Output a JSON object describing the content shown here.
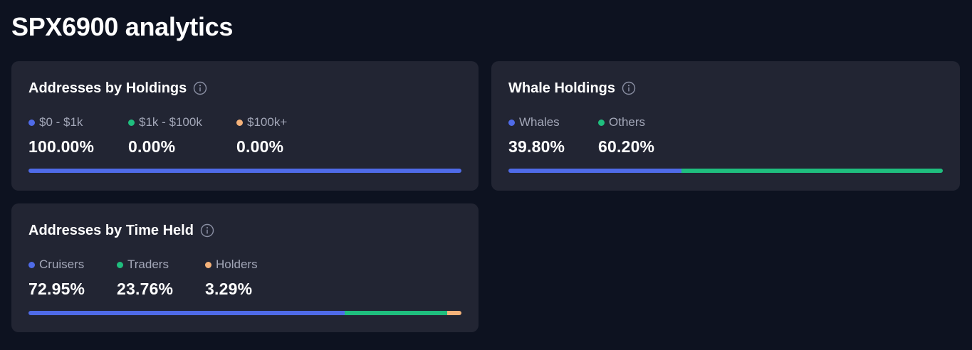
{
  "page": {
    "title": "SPX6900 analytics"
  },
  "colors": {
    "blue": "#4f6be8",
    "green": "#1fbe7e",
    "orange": "#f5b27a"
  },
  "cards": [
    {
      "title": "Addresses by Holdings",
      "icon": "info-icon",
      "segments": [
        {
          "label": "$0 - $1k",
          "value": "100.00%",
          "fraction": 1.0,
          "color": "#4f6be8"
        },
        {
          "label": "$1k - $100k",
          "value": "0.00%",
          "fraction": 0.0,
          "color": "#1fbe7e"
        },
        {
          "label": "$100k+",
          "value": "0.00%",
          "fraction": 0.0,
          "color": "#f5b27a"
        }
      ]
    },
    {
      "title": "Whale Holdings",
      "icon": "info-icon",
      "segments": [
        {
          "label": "Whales",
          "value": "39.80%",
          "fraction": 0.398,
          "color": "#4f6be8"
        },
        {
          "label": "Others",
          "value": "60.20%",
          "fraction": 0.602,
          "color": "#1fbe7e"
        }
      ]
    },
    {
      "title": "Addresses by Time Held",
      "icon": "info-icon",
      "segments": [
        {
          "label": "Cruisers",
          "value": "72.95%",
          "fraction": 0.7295,
          "color": "#4f6be8"
        },
        {
          "label": "Traders",
          "value": "23.76%",
          "fraction": 0.2376,
          "color": "#1fbe7e"
        },
        {
          "label": "Holders",
          "value": "3.29%",
          "fraction": 0.0329,
          "color": "#f5b27a"
        }
      ]
    }
  ]
}
